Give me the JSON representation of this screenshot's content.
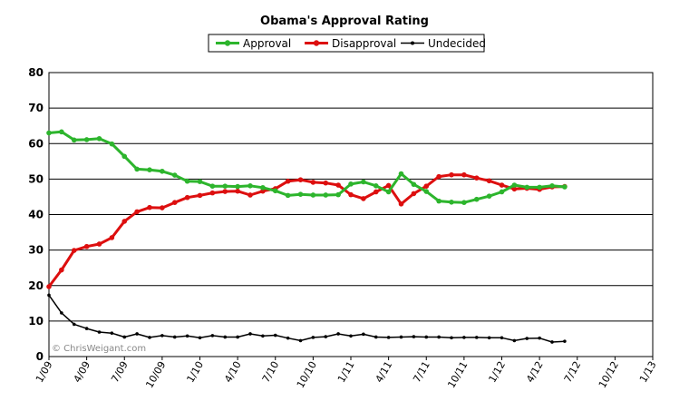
{
  "chart_data": {
    "type": "line",
    "title": "Obama's Approval Rating",
    "watermark": "© ChrisWeigant.com",
    "legend_position": "top",
    "grid": true,
    "ylim": [
      0,
      80
    ],
    "yticks": [
      0,
      10,
      20,
      30,
      40,
      50,
      60,
      70,
      80
    ],
    "xtick_labels": [
      "1/09",
      "4/09",
      "7/09",
      "10/09",
      "1/10",
      "4/10",
      "7/10",
      "10/10",
      "1/11",
      "4/11",
      "7/11",
      "10/11",
      "1/12",
      "4/12",
      "7/12",
      "10/12",
      "1/13"
    ],
    "series": [
      {
        "name": "Approval",
        "color": "#2db52d",
        "values": [
          63.0,
          63.3,
          61.0,
          61.1,
          61.4,
          59.9,
          56.4,
          52.8,
          52.6,
          52.2,
          51.1,
          49.4,
          49.3,
          48.0,
          48.0,
          47.9,
          48.1,
          47.6,
          46.7,
          45.4,
          45.7,
          45.5,
          45.5,
          45.6,
          48.6,
          49.2,
          48.1,
          46.4,
          51.5,
          48.5,
          46.5,
          43.8,
          43.5,
          43.4,
          44.3,
          45.2,
          46.4,
          48.3,
          47.7,
          47.7,
          48.1,
          47.8
        ],
        "legend_symbol": "circle"
      },
      {
        "name": "Disapproval",
        "color": "#dd0f0f",
        "values": [
          19.7,
          24.4,
          29.9,
          31.0,
          31.7,
          33.5,
          38.1,
          40.8,
          42.0,
          41.9,
          43.4,
          44.8,
          45.4,
          46.1,
          46.5,
          46.6,
          45.5,
          46.6,
          47.3,
          49.4,
          49.8,
          49.1,
          48.9,
          48.3,
          45.6,
          44.5,
          46.4,
          48.2,
          43.0,
          45.9,
          48.0,
          50.7,
          51.2,
          51.2,
          50.3,
          49.5,
          48.3,
          47.2,
          47.4,
          47.1,
          47.8,
          47.9
        ],
        "legend_symbol": "circle"
      },
      {
        "name": "Undecided",
        "color": "#000000",
        "values": [
          17.3,
          12.3,
          9.1,
          7.9,
          6.9,
          6.6,
          5.5,
          6.4,
          5.4,
          5.9,
          5.5,
          5.8,
          5.3,
          5.9,
          5.5,
          5.5,
          6.4,
          5.8,
          6.0,
          5.2,
          4.5,
          5.4,
          5.6,
          6.4,
          5.8,
          6.3,
          5.5,
          5.4,
          5.5,
          5.6,
          5.5,
          5.5,
          5.3,
          5.4,
          5.4,
          5.3,
          5.3,
          4.5,
          5.1,
          5.2,
          4.1,
          4.3
        ],
        "legend_symbol": "dot"
      }
    ]
  }
}
